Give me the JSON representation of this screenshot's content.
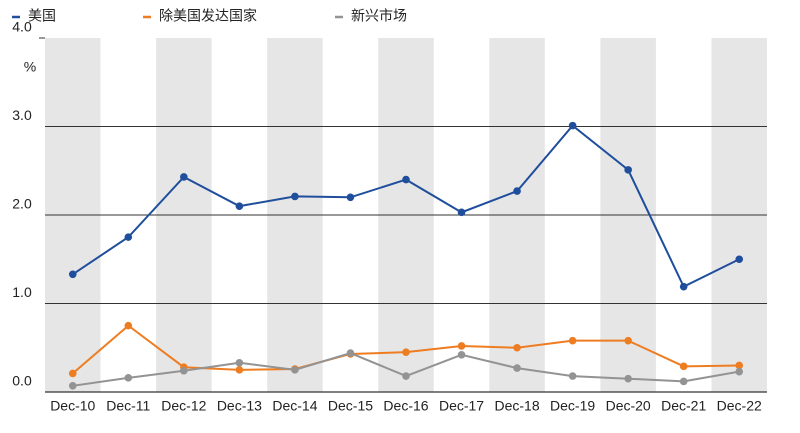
{
  "chart_data": {
    "type": "line",
    "y_unit": "%",
    "categories": [
      "Dec-10",
      "Dec-11",
      "Dec-12",
      "Dec-13",
      "Dec-14",
      "Dec-15",
      "Dec-16",
      "Dec-17",
      "Dec-18",
      "Dec-19",
      "Dec-20",
      "Dec-21",
      "Dec-22"
    ],
    "series": [
      {
        "name": "美国",
        "color": "#1f4e9c",
        "values": [
          1.33,
          1.75,
          2.43,
          2.1,
          2.21,
          2.2,
          2.4,
          2.03,
          2.27,
          3.01,
          2.51,
          1.19,
          1.5
        ]
      },
      {
        "name": "除美国发达国家",
        "color": "#ee7d22",
        "values": [
          0.21,
          0.75,
          0.28,
          0.25,
          0.26,
          0.43,
          0.45,
          0.52,
          0.5,
          0.58,
          0.58,
          0.29,
          0.3
        ]
      },
      {
        "name": "新兴市场",
        "color": "#939393",
        "values": [
          0.07,
          0.16,
          0.24,
          0.33,
          0.25,
          0.44,
          0.18,
          0.42,
          0.27,
          0.18,
          0.15,
          0.12,
          0.23
        ]
      }
    ],
    "ylim": [
      0,
      4
    ],
    "yticks": [
      {
        "value": 0,
        "label": "0.0"
      },
      {
        "value": 1,
        "label": "1.0"
      },
      {
        "value": 2,
        "label": "2.0"
      },
      {
        "value": 3,
        "label": "3.0"
      },
      {
        "value": 4,
        "label": "4.0"
      }
    ],
    "grid": true
  }
}
